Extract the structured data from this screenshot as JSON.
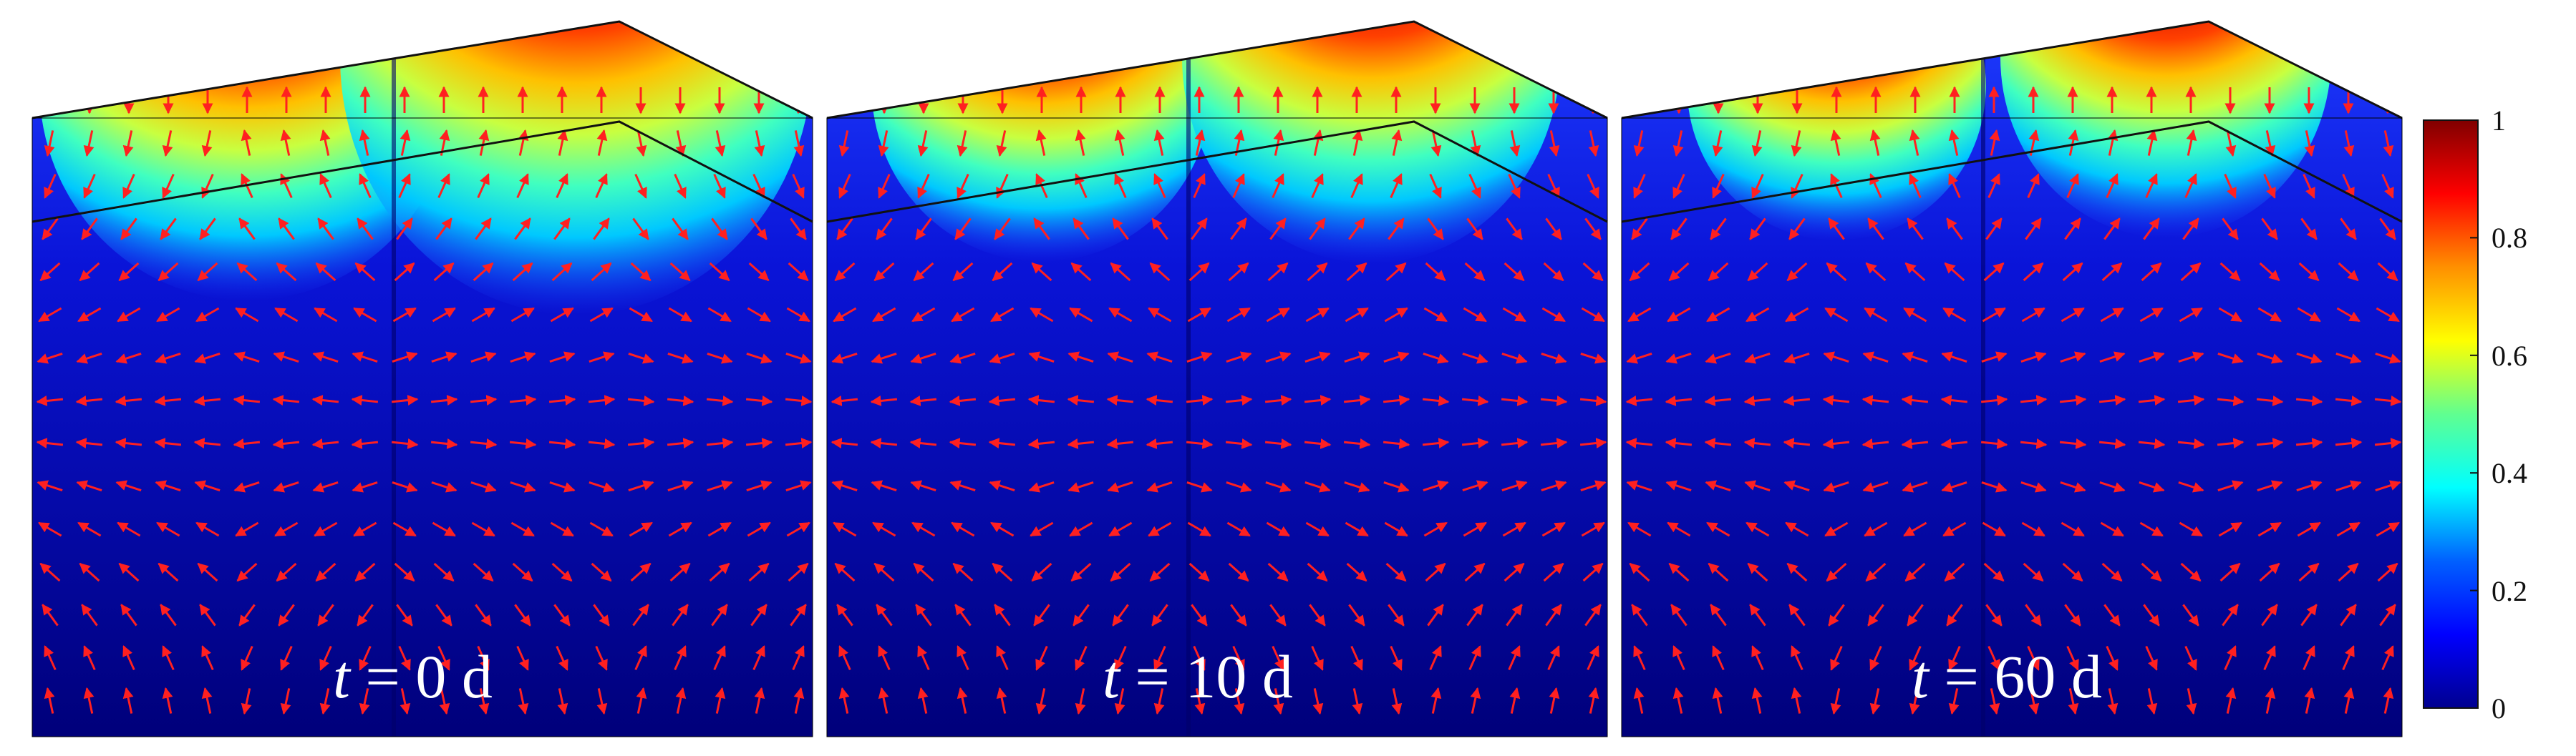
{
  "panels": [
    {
      "t_value": "0",
      "t_unit": "d",
      "var": "t",
      "eq": "="
    },
    {
      "t_value": "10",
      "t_unit": "d",
      "var": "t",
      "eq": "="
    },
    {
      "t_value": "60",
      "t_unit": "d",
      "var": "t",
      "eq": "="
    }
  ],
  "colorbar": {
    "ticks": [
      "1",
      "0.8",
      "0.6",
      "0.4",
      "0.2",
      "0"
    ],
    "colormap": [
      "#00008f",
      "#0000ff",
      "#0080ff",
      "#00ffff",
      "#80ff80",
      "#ffff00",
      "#ff8000",
      "#ff0000",
      "#800000"
    ]
  },
  "colors": {
    "arrow": "#ff2020",
    "edge": "#111111",
    "background": "#ffffff"
  },
  "plume_strength": [
    {
      "left": 1.0,
      "right": 1.0
    },
    {
      "left": 0.82,
      "right": 0.8
    },
    {
      "left": 0.72,
      "right": 0.7
    }
  ]
}
